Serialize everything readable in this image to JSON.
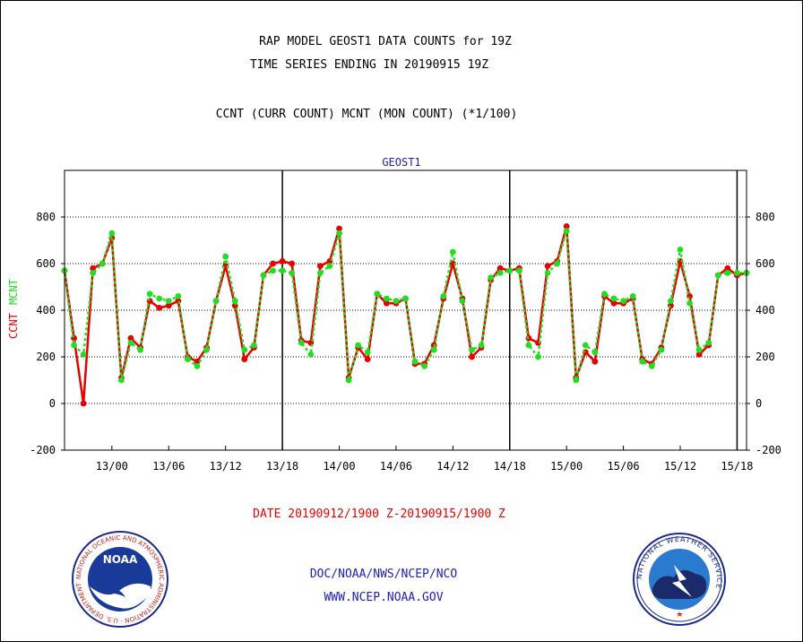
{
  "header": {
    "title_line1": "RAP MODEL GEOST1 DATA COUNTS for 19Z",
    "title_line2": "TIME SERIES ENDING IN 20190915 19Z",
    "subtitle": "CCNT (CURR COUNT) MCNT (MON COUNT) (*1/100)"
  },
  "footer": {
    "date_range": "DATE 20190912/1900 Z-20190915/1900 Z",
    "org": "DOC/NOAA/NWS/NCEP/NCO",
    "url": "WWW.NCEP.NOAA.GOV"
  },
  "logos": {
    "noaa_text": "NOAA",
    "noaa_ring": "NATIONAL OCEANIC AND ATMOSPHERIC ADMINISTRATION · U.S. DEPARTMENT OF COMMERCE ·",
    "nws_ring": "NATIONAL WEATHER SERVICE"
  },
  "colors": {
    "ccnt": "#e60000",
    "mcnt": "#22dd22",
    "blue_text": "#2020b0",
    "grid": "#000000"
  },
  "chart_data": {
    "type": "line",
    "title": "GEOST1",
    "ylabel_ccnt": "CCNT",
    "ylabel_mcnt": "MCNT",
    "ylim": [
      -200,
      1000
    ],
    "yticks": [
      -200,
      0,
      200,
      400,
      600,
      800
    ],
    "xlim": [
      0,
      72
    ],
    "xtick_positions": [
      5,
      11,
      17,
      23,
      29,
      35,
      41,
      47,
      53,
      59,
      65,
      71
    ],
    "xtick_labels": [
      "13/00",
      "13/06",
      "13/12",
      "13/18",
      "14/00",
      "14/06",
      "14/12",
      "14/18",
      "15/00",
      "15/06",
      "15/12",
      "15/18"
    ],
    "day_dividers": [
      23,
      47,
      71
    ],
    "grid": true,
    "series": [
      {
        "name": "CCNT",
        "x": [
          0,
          1,
          2,
          3,
          4,
          5,
          6,
          7,
          8,
          9,
          10,
          11,
          12,
          13,
          14,
          15,
          16,
          17,
          18,
          19,
          20,
          21,
          22,
          23,
          24,
          25,
          26,
          27,
          28,
          29,
          30,
          31,
          32,
          33,
          34,
          35,
          36,
          37,
          38,
          39,
          40,
          41,
          42,
          43,
          44,
          45,
          46,
          47,
          48,
          49,
          50,
          51,
          52,
          53,
          54,
          55,
          56,
          57,
          58,
          59,
          60,
          61,
          62,
          63,
          64,
          65,
          66,
          67,
          68,
          69,
          70,
          71,
          72
        ],
        "values": [
          570,
          280,
          0,
          580,
          600,
          710,
          110,
          280,
          240,
          440,
          410,
          420,
          440,
          200,
          180,
          240,
          440,
          590,
          420,
          190,
          240,
          550,
          600,
          610,
          600,
          270,
          260,
          590,
          610,
          750,
          110,
          240,
          190,
          470,
          430,
          430,
          450,
          170,
          170,
          250,
          450,
          600,
          450,
          200,
          240,
          530,
          580,
          570,
          580,
          280,
          260,
          590,
          610,
          760,
          110,
          220,
          180,
          460,
          430,
          430,
          450,
          190,
          170,
          240,
          420,
          610,
          460,
          210,
          250,
          550,
          580,
          550,
          560
        ]
      },
      {
        "name": "MCNT",
        "x": [
          0,
          1,
          2,
          3,
          4,
          5,
          6,
          7,
          8,
          9,
          10,
          11,
          12,
          13,
          14,
          15,
          16,
          17,
          18,
          19,
          20,
          21,
          22,
          23,
          24,
          25,
          26,
          27,
          28,
          29,
          30,
          31,
          32,
          33,
          34,
          35,
          36,
          37,
          38,
          39,
          40,
          41,
          42,
          43,
          44,
          45,
          46,
          47,
          48,
          49,
          50,
          51,
          52,
          53,
          54,
          55,
          56,
          57,
          58,
          59,
          60,
          61,
          62,
          63,
          64,
          65,
          66,
          67,
          68,
          69,
          70,
          71,
          72
        ],
        "values": [
          570,
          250,
          210,
          560,
          600,
          730,
          100,
          260,
          230,
          470,
          450,
          440,
          460,
          190,
          160,
          230,
          440,
          630,
          440,
          230,
          250,
          550,
          570,
          570,
          560,
          260,
          210,
          560,
          590,
          730,
          100,
          250,
          220,
          470,
          450,
          440,
          450,
          180,
          160,
          230,
          460,
          650,
          440,
          230,
          250,
          540,
          560,
          570,
          570,
          250,
          200,
          560,
          600,
          740,
          100,
          250,
          220,
          470,
          450,
          440,
          460,
          180,
          160,
          230,
          440,
          660,
          430,
          230,
          260,
          550,
          560,
          560,
          560
        ]
      }
    ]
  }
}
